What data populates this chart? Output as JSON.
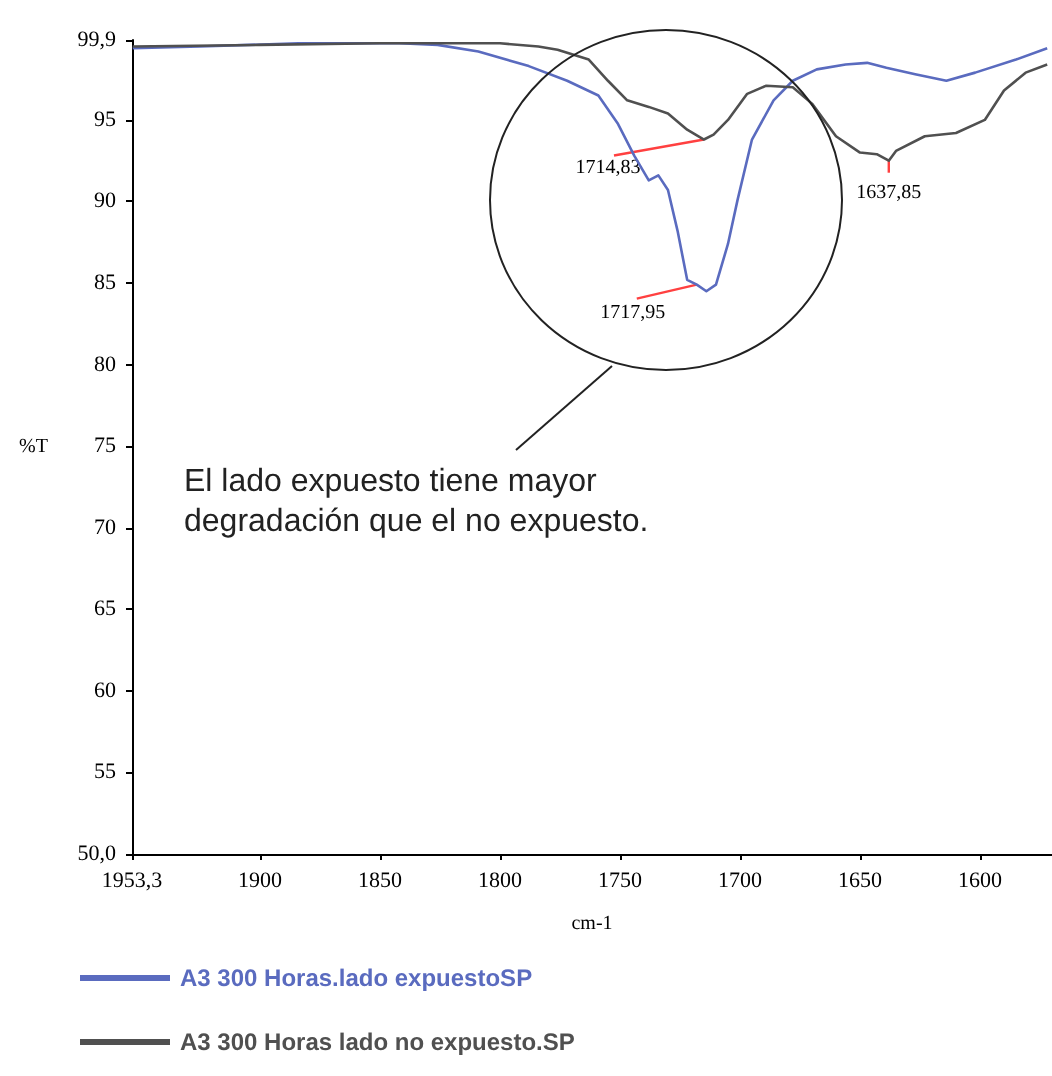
{
  "chart_data": {
    "type": "line",
    "xlabel": "cm-1",
    "ylabel": "%T",
    "x": [
      1953,
      1925,
      1884,
      1842,
      1826,
      1809,
      1788,
      1772,
      1759,
      1751,
      1744,
      1738,
      1734,
      1730,
      1726,
      1722,
      1718,
      1714,
      1710,
      1705,
      1701,
      1695,
      1686,
      1678,
      1668,
      1656,
      1647,
      1639,
      1627,
      1614,
      1602,
      1585,
      1572
    ],
    "series": [
      {
        "name": "A3 300 Horas.lado expuestoSP",
        "color": "#5a6bbf",
        "values": [
          99.4,
          99.5,
          99.7,
          99.7,
          99.6,
          99.2,
          98.3,
          97.4,
          96.5,
          94.8,
          92.8,
          91.3,
          91.6,
          90.7,
          88.2,
          85.2,
          84.9,
          84.5,
          84.9,
          87.4,
          90.1,
          93.8,
          96.2,
          97.4,
          98.1,
          98.4,
          98.5,
          98.2,
          97.8,
          97.4,
          97.9,
          98.7,
          99.4
        ]
      },
      {
        "name": "A3 300 Horas lado no expuesto.SP",
        "color": "#505050",
        "x": [
          1953,
          1900,
          1850,
          1800,
          1784,
          1776,
          1763,
          1755,
          1747,
          1738,
          1730,
          1722,
          1715,
          1711,
          1705,
          1697,
          1689,
          1678,
          1670,
          1660,
          1650,
          1643,
          1638,
          1635,
          1623,
          1610,
          1598,
          1590,
          1581,
          1572
        ],
        "values": [
          99.5,
          99.6,
          99.7,
          99.7,
          99.5,
          99.3,
          98.7,
          97.4,
          96.2,
          95.8,
          95.4,
          94.4,
          93.8,
          94.1,
          95.0,
          96.6,
          97.1,
          97.0,
          96.0,
          94.0,
          93.0,
          92.9,
          92.5,
          93.1,
          94.0,
          94.2,
          95.0,
          96.8,
          97.9,
          98.4
        ]
      }
    ],
    "xlim": [
      1953.3,
      1570
    ],
    "xticks": [
      {
        "value": 1953.3,
        "label": "1953,3"
      },
      1900,
      1850,
      1800,
      1750,
      1700,
      1650,
      1600
    ],
    "ylim": [
      50,
      99.9
    ],
    "yticks": [
      {
        "value": 50,
        "label": "50,0"
      },
      55,
      60,
      65,
      70,
      75,
      80,
      85,
      90,
      95,
      {
        "value": 99.9,
        "label": "99,9"
      }
    ],
    "annotations": [
      "El lado expuesto tiene mayor degradación que el no expuesto.",
      {
        "text": "1714,83",
        "x": 1715,
        "y": 93.8
      },
      {
        "text": "1717,95",
        "x": 1718,
        "y": 84.9
      },
      {
        "text": "1637,85",
        "x": 1638,
        "y": 92.5
      }
    ],
    "grid": false,
    "legend": "bottom",
    "marker": "none",
    "line_style": "solid"
  }
}
